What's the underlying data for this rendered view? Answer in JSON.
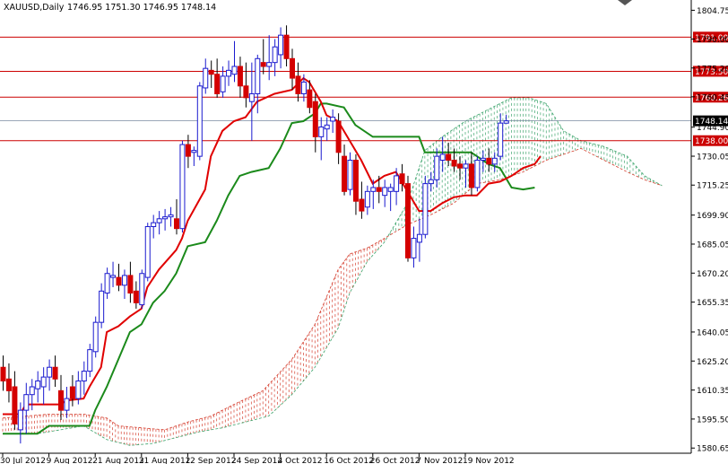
{
  "chart_data": {
    "type": "candlestick",
    "title": "XAUUSD,Daily",
    "ohlc_readout": "1746.95 1751.30 1746.95 1748.14",
    "ylim": [
      1578,
      1810
    ],
    "y_ticks": [
      "1804.75",
      "1790.00",
      "1775.20",
      "1760.45",
      "1744.90",
      "1730.05",
      "1715.25",
      "1699.90",
      "1685.05",
      "1670.20",
      "1655.35",
      "1640.05",
      "1625.20",
      "1610.35",
      "1595.50",
      "1580.65"
    ],
    "x_labels": [
      "30 Jul 2012",
      "9 Aug 2012",
      "21 Aug 2012",
      "31 Aug 2012",
      "12 Sep 2012",
      "24 Sep 2012",
      "4 Oct 2012",
      "16 Oct 2012",
      "26 Oct 2012",
      "7 Nov 2012",
      "19 Nov 2012"
    ],
    "x_label_bars": [
      0,
      8,
      16,
      24,
      32,
      40,
      48,
      56,
      64,
      72,
      80
    ],
    "bars_total": 100,
    "candles": [
      {
        "o": 1622,
        "h": 1628,
        "l": 1610,
        "c": 1615
      },
      {
        "o": 1616,
        "h": 1624,
        "l": 1604,
        "c": 1610
      },
      {
        "o": 1612,
        "h": 1620,
        "l": 1590,
        "c": 1593
      },
      {
        "o": 1590,
        "h": 1604,
        "l": 1583,
        "c": 1600
      },
      {
        "o": 1600,
        "h": 1614,
        "l": 1588,
        "c": 1608
      },
      {
        "o": 1608,
        "h": 1616,
        "l": 1600,
        "c": 1612
      },
      {
        "o": 1611,
        "h": 1620,
        "l": 1604,
        "c": 1615
      },
      {
        "o": 1612,
        "h": 1622,
        "l": 1603,
        "c": 1617
      },
      {
        "o": 1617,
        "h": 1626,
        "l": 1610,
        "c": 1622
      },
      {
        "o": 1622,
        "h": 1628,
        "l": 1612,
        "c": 1616
      },
      {
        "o": 1610,
        "h": 1618,
        "l": 1595,
        "c": 1600
      },
      {
        "o": 1600,
        "h": 1612,
        "l": 1596,
        "c": 1606
      },
      {
        "o": 1612,
        "h": 1618,
        "l": 1602,
        "c": 1606
      },
      {
        "o": 1606,
        "h": 1620,
        "l": 1603,
        "c": 1615
      },
      {
        "o": 1615,
        "h": 1625,
        "l": 1608,
        "c": 1620
      },
      {
        "o": 1620,
        "h": 1634,
        "l": 1617,
        "c": 1631
      },
      {
        "o": 1630,
        "h": 1648,
        "l": 1627,
        "c": 1645
      },
      {
        "o": 1645,
        "h": 1665,
        "l": 1642,
        "c": 1661
      },
      {
        "o": 1660,
        "h": 1673,
        "l": 1657,
        "c": 1670
      },
      {
        "o": 1668,
        "h": 1676,
        "l": 1663,
        "c": 1669
      },
      {
        "o": 1668,
        "h": 1675,
        "l": 1661,
        "c": 1664
      },
      {
        "o": 1664,
        "h": 1672,
        "l": 1657,
        "c": 1669
      },
      {
        "o": 1669,
        "h": 1676,
        "l": 1655,
        "c": 1660
      },
      {
        "o": 1661,
        "h": 1666,
        "l": 1652,
        "c": 1655
      },
      {
        "o": 1654,
        "h": 1672,
        "l": 1652,
        "c": 1670
      },
      {
        "o": 1668,
        "h": 1696,
        "l": 1666,
        "c": 1694
      },
      {
        "o": 1694,
        "h": 1700,
        "l": 1688,
        "c": 1696
      },
      {
        "o": 1696,
        "h": 1702,
        "l": 1690,
        "c": 1698
      },
      {
        "o": 1698,
        "h": 1703,
        "l": 1692,
        "c": 1699
      },
      {
        "o": 1699,
        "h": 1704,
        "l": 1694,
        "c": 1700
      },
      {
        "o": 1698,
        "h": 1708,
        "l": 1690,
        "c": 1693
      },
      {
        "o": 1693,
        "h": 1738,
        "l": 1691,
        "c": 1736
      },
      {
        "o": 1736,
        "h": 1741,
        "l": 1724,
        "c": 1730
      },
      {
        "o": 1732,
        "h": 1735,
        "l": 1725,
        "c": 1733
      },
      {
        "o": 1730,
        "h": 1768,
        "l": 1728,
        "c": 1766
      },
      {
        "o": 1765,
        "h": 1780,
        "l": 1762,
        "c": 1775
      },
      {
        "o": 1774,
        "h": 1779,
        "l": 1765,
        "c": 1772
      },
      {
        "o": 1772,
        "h": 1780,
        "l": 1760,
        "c": 1762
      },
      {
        "o": 1763,
        "h": 1776,
        "l": 1760,
        "c": 1771
      },
      {
        "o": 1771,
        "h": 1779,
        "l": 1766,
        "c": 1774
      },
      {
        "o": 1772,
        "h": 1789,
        "l": 1768,
        "c": 1776
      },
      {
        "o": 1776,
        "h": 1781,
        "l": 1760,
        "c": 1766
      },
      {
        "o": 1766,
        "h": 1778,
        "l": 1755,
        "c": 1760
      },
      {
        "o": 1758,
        "h": 1778,
        "l": 1738,
        "c": 1762
      },
      {
        "o": 1762,
        "h": 1782,
        "l": 1752,
        "c": 1780
      },
      {
        "o": 1778,
        "h": 1790,
        "l": 1772,
        "c": 1776
      },
      {
        "o": 1776,
        "h": 1792,
        "l": 1769,
        "c": 1778
      },
      {
        "o": 1778,
        "h": 1790,
        "l": 1771,
        "c": 1786
      },
      {
        "o": 1782,
        "h": 1796,
        "l": 1775,
        "c": 1792
      },
      {
        "o": 1792,
        "h": 1797,
        "l": 1776,
        "c": 1780
      },
      {
        "o": 1780,
        "h": 1785,
        "l": 1764,
        "c": 1770
      },
      {
        "o": 1771,
        "h": 1778,
        "l": 1758,
        "c": 1762
      },
      {
        "o": 1762,
        "h": 1772,
        "l": 1758,
        "c": 1768
      },
      {
        "o": 1764,
        "h": 1769,
        "l": 1752,
        "c": 1755
      },
      {
        "o": 1758,
        "h": 1762,
        "l": 1732,
        "c": 1740
      },
      {
        "o": 1740,
        "h": 1750,
        "l": 1728,
        "c": 1745
      },
      {
        "o": 1744,
        "h": 1750,
        "l": 1738,
        "c": 1746
      },
      {
        "o": 1748,
        "h": 1754,
        "l": 1742,
        "c": 1750
      },
      {
        "o": 1748,
        "h": 1752,
        "l": 1726,
        "c": 1732
      },
      {
        "o": 1730,
        "h": 1736,
        "l": 1710,
        "c": 1712
      },
      {
        "o": 1713,
        "h": 1732,
        "l": 1710,
        "c": 1728
      },
      {
        "o": 1728,
        "h": 1731,
        "l": 1700,
        "c": 1707
      },
      {
        "o": 1708,
        "h": 1717,
        "l": 1698,
        "c": 1702
      },
      {
        "o": 1704,
        "h": 1715,
        "l": 1700,
        "c": 1712
      },
      {
        "o": 1712,
        "h": 1718,
        "l": 1703,
        "c": 1714
      },
      {
        "o": 1714,
        "h": 1720,
        "l": 1706,
        "c": 1712
      },
      {
        "o": 1710,
        "h": 1718,
        "l": 1704,
        "c": 1714
      },
      {
        "o": 1712,
        "h": 1716,
        "l": 1702,
        "c": 1714
      },
      {
        "o": 1712,
        "h": 1724,
        "l": 1705,
        "c": 1720
      },
      {
        "o": 1721,
        "h": 1726,
        "l": 1712,
        "c": 1716
      },
      {
        "o": 1716,
        "h": 1720,
        "l": 1676,
        "c": 1678
      },
      {
        "o": 1678,
        "h": 1694,
        "l": 1673,
        "c": 1688
      },
      {
        "o": 1686,
        "h": 1698,
        "l": 1676,
        "c": 1690
      },
      {
        "o": 1690,
        "h": 1720,
        "l": 1688,
        "c": 1716
      },
      {
        "o": 1716,
        "h": 1722,
        "l": 1712,
        "c": 1718
      },
      {
        "o": 1718,
        "h": 1734,
        "l": 1714,
        "c": 1730
      },
      {
        "o": 1728,
        "h": 1740,
        "l": 1722,
        "c": 1731
      },
      {
        "o": 1731,
        "h": 1737,
        "l": 1725,
        "c": 1728
      },
      {
        "o": 1728,
        "h": 1734,
        "l": 1722,
        "c": 1725
      },
      {
        "o": 1726,
        "h": 1730,
        "l": 1718,
        "c": 1724
      },
      {
        "o": 1724,
        "h": 1728,
        "l": 1714,
        "c": 1726
      },
      {
        "o": 1726,
        "h": 1732,
        "l": 1710,
        "c": 1714
      },
      {
        "o": 1714,
        "h": 1730,
        "l": 1712,
        "c": 1728
      },
      {
        "o": 1728,
        "h": 1733,
        "l": 1722,
        "c": 1729
      },
      {
        "o": 1729,
        "h": 1734,
        "l": 1722,
        "c": 1726
      },
      {
        "o": 1726,
        "h": 1732,
        "l": 1722,
        "c": 1729
      },
      {
        "o": 1730,
        "h": 1752,
        "l": 1728,
        "c": 1747
      },
      {
        "o": 1746.95,
        "h": 1751.3,
        "l": 1746.95,
        "c": 1748.14
      }
    ],
    "tenkan_sen": [
      [
        0,
        1598
      ],
      [
        3,
        1598
      ],
      [
        4,
        1603
      ],
      [
        10,
        1603
      ],
      [
        11,
        1605
      ],
      [
        14,
        1606
      ],
      [
        15,
        1612
      ],
      [
        17,
        1622
      ],
      [
        18,
        1640
      ],
      [
        20,
        1643
      ],
      [
        22,
        1648
      ],
      [
        24,
        1652
      ],
      [
        25,
        1663
      ],
      [
        27,
        1672
      ],
      [
        30,
        1682
      ],
      [
        31,
        1688
      ],
      [
        32,
        1697
      ],
      [
        35,
        1713
      ],
      [
        36,
        1730
      ],
      [
        38,
        1743
      ],
      [
        40,
        1748
      ],
      [
        42,
        1750
      ],
      [
        44,
        1758
      ],
      [
        47,
        1762
      ],
      [
        50,
        1764
      ],
      [
        52,
        1770
      ],
      [
        53,
        1768
      ],
      [
        55,
        1758
      ],
      [
        56,
        1751
      ],
      [
        58,
        1748
      ],
      [
        60,
        1738
      ],
      [
        62,
        1728
      ],
      [
        64,
        1716
      ],
      [
        66,
        1720
      ],
      [
        68,
        1722
      ],
      [
        70,
        1712
      ],
      [
        72,
        1702
      ],
      [
        74,
        1702
      ],
      [
        76,
        1706
      ],
      [
        78,
        1709
      ],
      [
        80,
        1710
      ],
      [
        82,
        1710
      ],
      [
        84,
        1716
      ],
      [
        86,
        1717
      ],
      [
        88,
        1720
      ],
      [
        90,
        1724
      ],
      [
        92,
        1726
      ],
      [
        93,
        1730
      ]
    ],
    "kijun_sen": [
      [
        0,
        1588
      ],
      [
        6,
        1588
      ],
      [
        8,
        1592
      ],
      [
        15,
        1592
      ],
      [
        16,
        1600
      ],
      [
        18,
        1612
      ],
      [
        20,
        1626
      ],
      [
        22,
        1640
      ],
      [
        24,
        1644
      ],
      [
        26,
        1655
      ],
      [
        28,
        1661
      ],
      [
        30,
        1670
      ],
      [
        32,
        1684
      ],
      [
        35,
        1686
      ],
      [
        37,
        1697
      ],
      [
        39,
        1710
      ],
      [
        41,
        1720
      ],
      [
        43,
        1722
      ],
      [
        46,
        1724
      ],
      [
        48,
        1734
      ],
      [
        50,
        1747
      ],
      [
        52,
        1748
      ],
      [
        54,
        1752
      ],
      [
        55,
        1757
      ],
      [
        56,
        1757
      ],
      [
        59,
        1755
      ],
      [
        61,
        1746
      ],
      [
        64,
        1740
      ],
      [
        65,
        1740
      ],
      [
        72,
        1740
      ],
      [
        73,
        1732
      ],
      [
        81,
        1732
      ],
      [
        82,
        1730
      ],
      [
        84,
        1726
      ],
      [
        86,
        1724
      ],
      [
        88,
        1714
      ],
      [
        90,
        1713
      ],
      [
        92,
        1714
      ]
    ],
    "cloud_span_a": [
      [
        0,
        1596
      ],
      [
        4,
        1597
      ],
      [
        8,
        1598
      ],
      [
        14,
        1598
      ],
      [
        18,
        1596
      ],
      [
        20,
        1592
      ],
      [
        24,
        1591
      ],
      [
        28,
        1590
      ],
      [
        32,
        1594
      ],
      [
        36,
        1597
      ],
      [
        40,
        1603
      ],
      [
        45,
        1610
      ],
      [
        50,
        1626
      ],
      [
        54,
        1644
      ],
      [
        58,
        1672
      ],
      [
        60,
        1680
      ],
      [
        63,
        1683
      ],
      [
        66,
        1688
      ],
      [
        70,
        1695
      ],
      [
        74,
        1700
      ],
      [
        78,
        1706
      ],
      [
        82,
        1716
      ],
      [
        86,
        1718
      ],
      [
        90,
        1722
      ],
      [
        94,
        1728
      ],
      [
        98,
        1732
      ],
      [
        100,
        1734
      ]
    ],
    "cloud_span_b": [
      [
        0,
        1588
      ],
      [
        6,
        1588
      ],
      [
        10,
        1590
      ],
      [
        14,
        1592
      ],
      [
        18,
        1585
      ],
      [
        22,
        1582
      ],
      [
        26,
        1583
      ],
      [
        30,
        1586
      ],
      [
        34,
        1589
      ],
      [
        38,
        1591
      ],
      [
        42,
        1594
      ],
      [
        46,
        1597
      ],
      [
        50,
        1608
      ],
      [
        54,
        1622
      ],
      [
        58,
        1642
      ],
      [
        60,
        1660
      ],
      [
        63,
        1676
      ],
      [
        66,
        1686
      ],
      [
        70,
        1706
      ],
      [
        73,
        1733
      ],
      [
        76,
        1740
      ],
      [
        80,
        1748
      ],
      [
        84,
        1754
      ],
      [
        88,
        1760
      ],
      [
        91,
        1760
      ],
      [
        94,
        1757
      ],
      [
        97,
        1743
      ],
      [
        100,
        1738
      ]
    ],
    "cloud_span_b_tail": [
      [
        100,
        1738
      ],
      [
        104,
        1735
      ],
      [
        108,
        1730
      ],
      [
        111,
        1720
      ],
      [
        114,
        1715
      ]
    ],
    "cloud_span_a_tail": [
      [
        100,
        1734
      ],
      [
        104,
        1728
      ],
      [
        108,
        1722
      ],
      [
        111,
        1718
      ],
      [
        114,
        1715
      ]
    ],
    "horizontal_levels": [
      {
        "price": 1791.0,
        "label": "1791.00"
      },
      {
        "price": 1773.5,
        "label": "1773.50"
      },
      {
        "price": 1760.26,
        "label": "1760.26"
      },
      {
        "price": 1738.0,
        "label": "1738.00"
      }
    ],
    "current_price": {
      "price": 1748.14,
      "label": "1748.14"
    },
    "colors": {
      "bull": "#1a1acf",
      "bear": "#d40000",
      "tenkan": "#e00000",
      "kijun": "#1b8a1b",
      "cloud_green": "#3aa36a",
      "cloud_red": "#d43a2a",
      "level": "#cc0000",
      "grid": "#000000"
    }
  }
}
